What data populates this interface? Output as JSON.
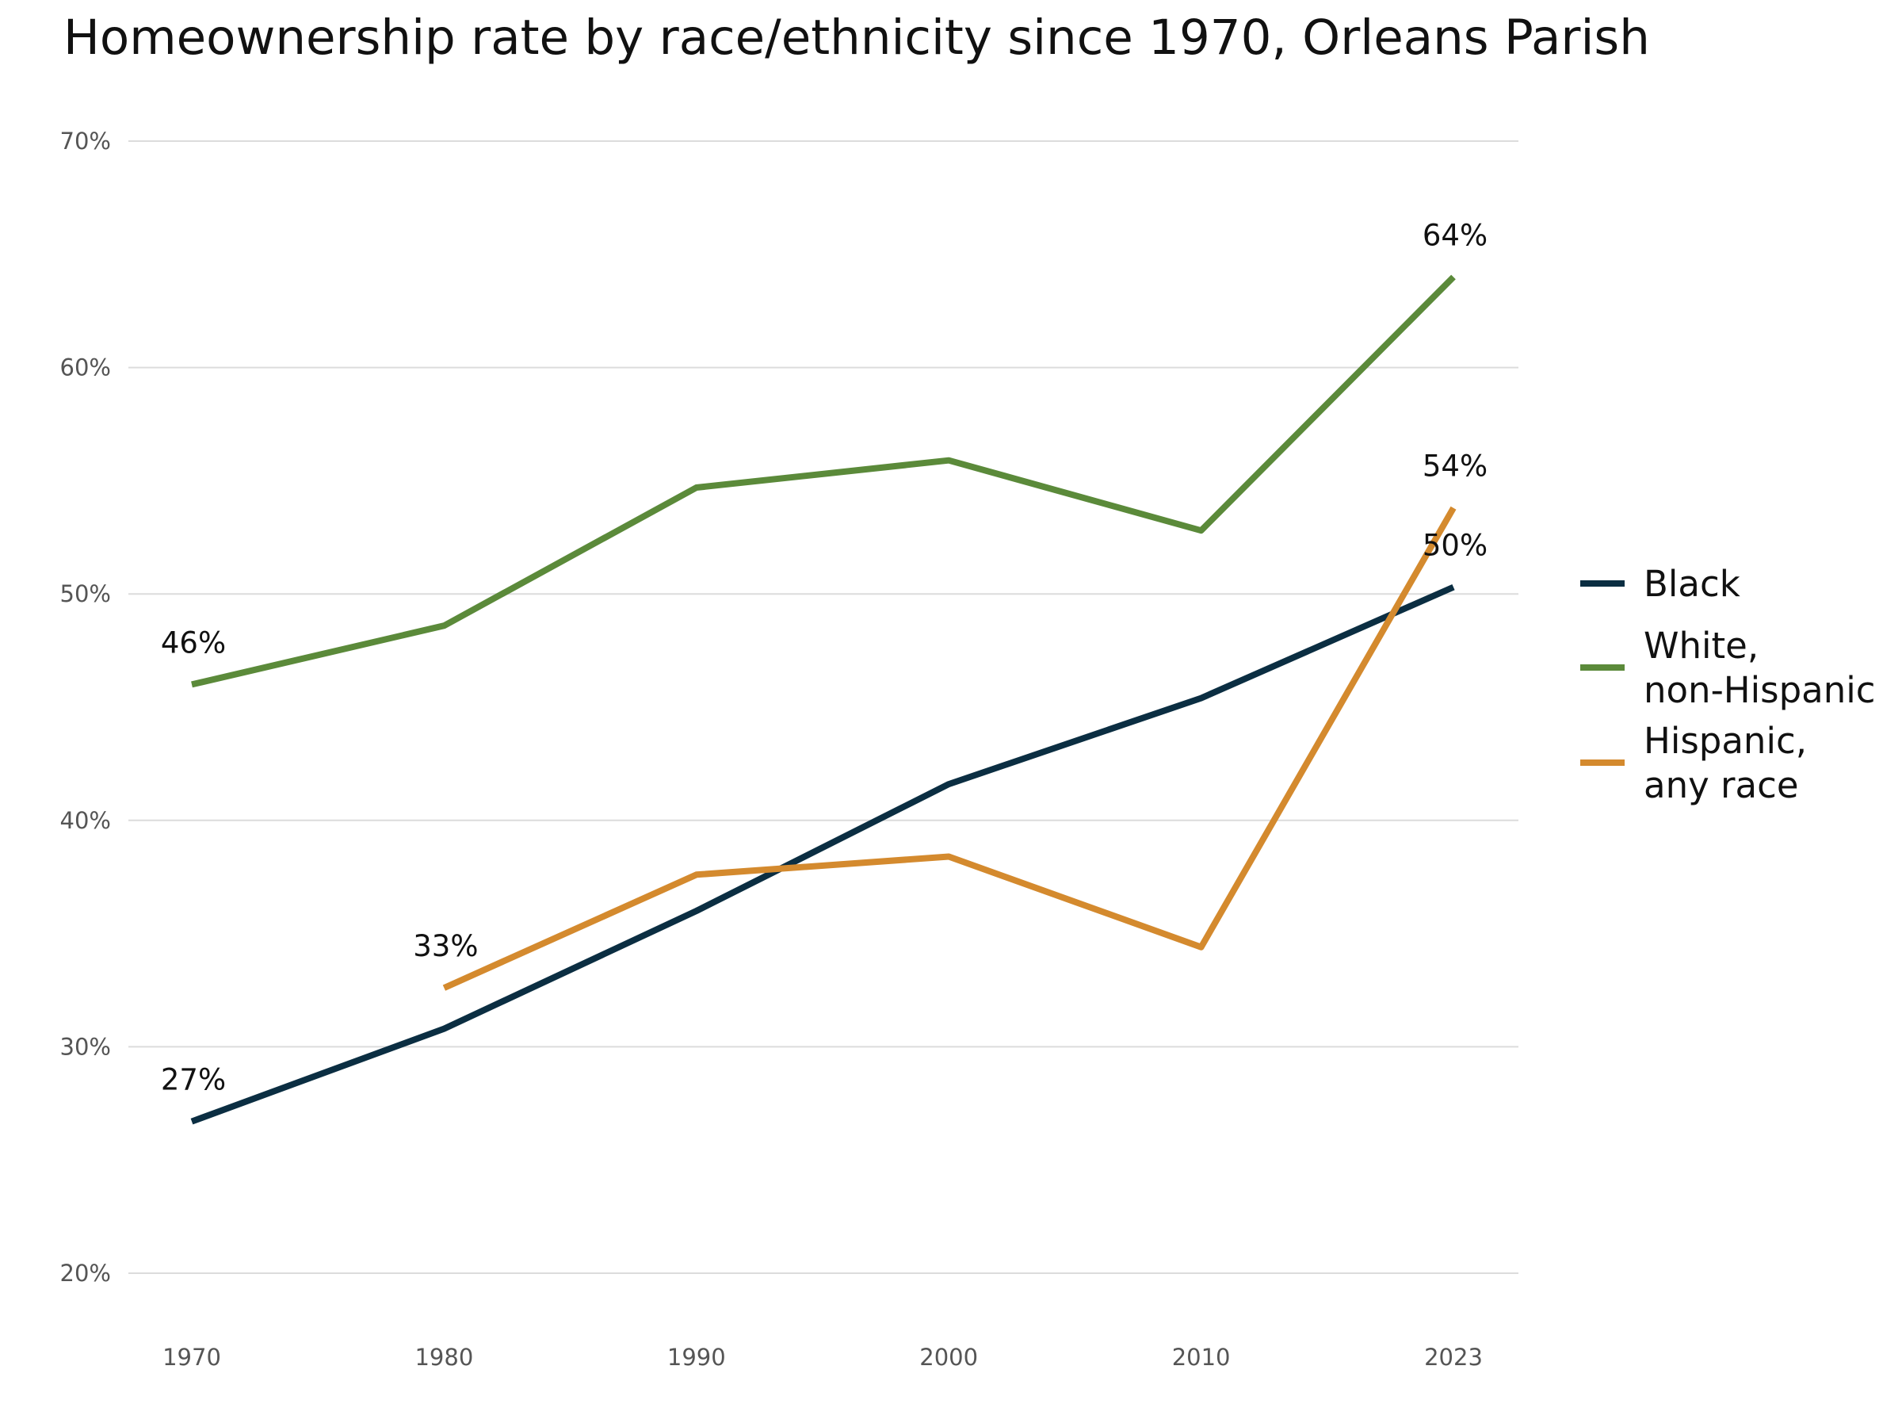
{
  "chart_data": {
    "type": "line",
    "title": "Homeownership rate by race/ethnicity since 1970, Orleans Parish",
    "xlabel": "",
    "ylabel": "",
    "categories": [
      "1970",
      "1980",
      "1990",
      "2000",
      "2010",
      "2023"
    ],
    "ylim": [
      20,
      70
    ],
    "yticks": [
      20,
      30,
      40,
      50,
      60,
      70
    ],
    "ytick_labels": [
      "20%",
      "30%",
      "40%",
      "50%",
      "60%",
      "70%"
    ],
    "grid": "horizontal",
    "legend_position": "right",
    "series": [
      {
        "name": "Black",
        "color": "#0b2e42",
        "values": [
          26.7,
          30.8,
          36.0,
          41.6,
          45.4,
          50.3
        ],
        "labels": [
          {
            "index": 0,
            "text": "27%"
          },
          {
            "index": 5,
            "text": "50%"
          }
        ]
      },
      {
        "name": "White, non-Hispanic",
        "legend_lines": [
          "White,",
          "non-Hispanic"
        ],
        "color": "#5b8a3a",
        "values": [
          46.0,
          48.6,
          54.7,
          55.9,
          52.8,
          64.0
        ],
        "labels": [
          {
            "index": 0,
            "text": "46%"
          },
          {
            "index": 5,
            "text": "64%"
          }
        ]
      },
      {
        "name": "Hispanic, any race",
        "legend_lines": [
          "Hispanic,",
          "any race"
        ],
        "color": "#d48a2e",
        "values": [
          null,
          32.6,
          37.6,
          38.4,
          34.4,
          53.8
        ],
        "labels": [
          {
            "index": 1,
            "text": "33%"
          },
          {
            "index": 5,
            "text": "54%"
          }
        ]
      }
    ]
  }
}
